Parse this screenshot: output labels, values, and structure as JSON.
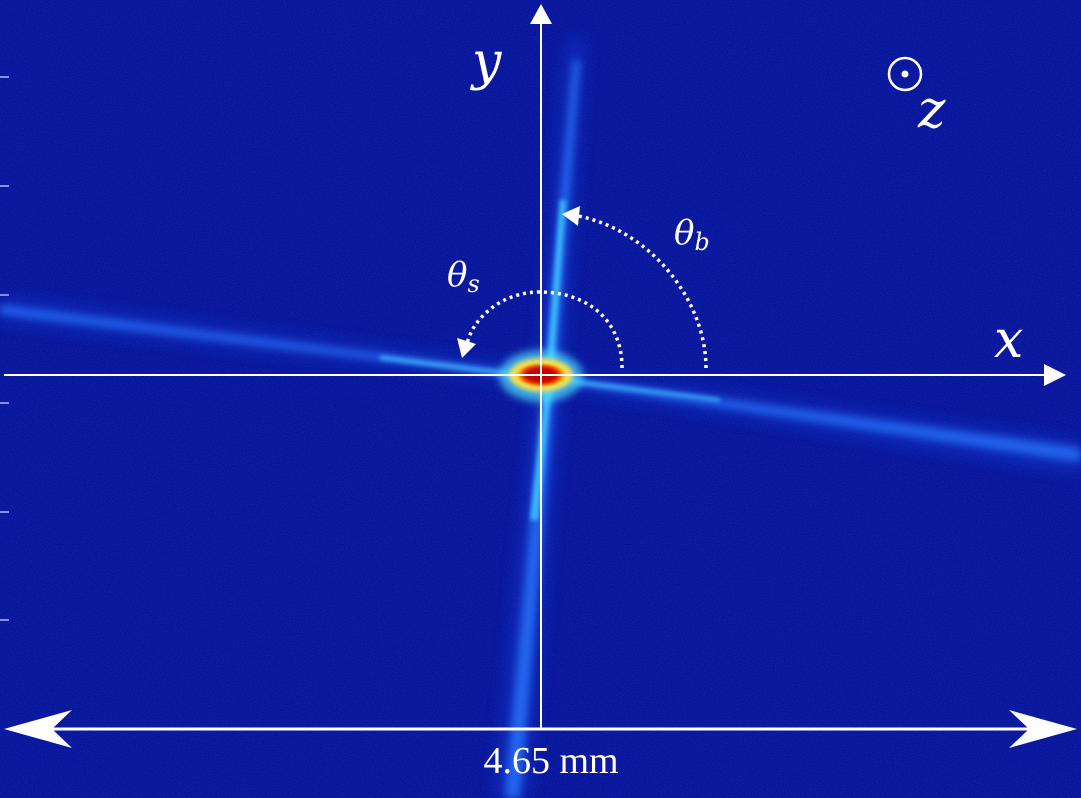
{
  "axes": {
    "x_label": "x",
    "y_label": "y",
    "z_label": "z",
    "z_symbol": "out-of-plane-dot-icon"
  },
  "angles": {
    "theta_b": {
      "symbol": "θ",
      "subscript": "b"
    },
    "theta_s": {
      "symbol": "θ",
      "subscript": "s"
    }
  },
  "scale_bar": {
    "label": "4.65 mm"
  },
  "colors": {
    "background": "#000a8c",
    "beam_low": "#1c5cff",
    "beam_mid": "#2fa6ff",
    "hot_spot": "#ff2a00",
    "hot_spot_core": "#b30000",
    "annotation": "#ffffff"
  }
}
